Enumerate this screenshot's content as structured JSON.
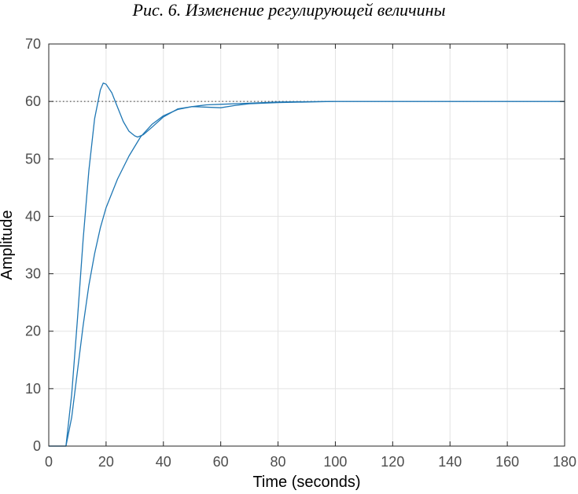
{
  "caption": "Рис. 6. Изменение регулирующей величины",
  "chart_data": {
    "type": "line",
    "title": "",
    "xlabel": "Time (seconds)",
    "ylabel": "Amplitude",
    "xlim": [
      0,
      180
    ],
    "ylim": [
      0,
      70
    ],
    "xticks": [
      0,
      20,
      40,
      60,
      80,
      100,
      120,
      140,
      160,
      180
    ],
    "yticks": [
      0,
      10,
      20,
      30,
      40,
      50,
      60,
      70
    ],
    "grid": true,
    "legend": "none",
    "reference_line": {
      "y": 60,
      "style": "dotted"
    },
    "series": [
      {
        "color": "#1f77b4",
        "points": [
          [
            0,
            0
          ],
          [
            6,
            0
          ],
          [
            8,
            9
          ],
          [
            10,
            22
          ],
          [
            12,
            36
          ],
          [
            14,
            48
          ],
          [
            16,
            57
          ],
          [
            18,
            62
          ],
          [
            19,
            63.2
          ],
          [
            20,
            63
          ],
          [
            22,
            61.5
          ],
          [
            24,
            59
          ],
          [
            26,
            56.5
          ],
          [
            28,
            54.8
          ],
          [
            30,
            54
          ],
          [
            31,
            53.8
          ],
          [
            33,
            54.2
          ],
          [
            36,
            55.5
          ],
          [
            40,
            57.3
          ],
          [
            45,
            58.7
          ],
          [
            50,
            59.1
          ],
          [
            55,
            59.0
          ],
          [
            60,
            58.9
          ],
          [
            65,
            59.3
          ],
          [
            70,
            59.6
          ],
          [
            80,
            59.8
          ],
          [
            100,
            60
          ],
          [
            120,
            60
          ],
          [
            180,
            60
          ]
        ]
      },
      {
        "color": "#1f77b4",
        "points": [
          [
            0,
            0
          ],
          [
            6,
            0
          ],
          [
            8,
            5
          ],
          [
            10,
            13
          ],
          [
            12,
            21
          ],
          [
            14,
            28
          ],
          [
            16,
            33.5
          ],
          [
            18,
            38
          ],
          [
            20,
            41.5
          ],
          [
            24,
            46.5
          ],
          [
            28,
            50.5
          ],
          [
            32,
            53.8
          ],
          [
            36,
            56
          ],
          [
            40,
            57.5
          ],
          [
            45,
            58.6
          ],
          [
            50,
            59.1
          ],
          [
            55,
            59.4
          ],
          [
            60,
            59.5
          ],
          [
            70,
            59.7
          ],
          [
            80,
            59.9
          ],
          [
            100,
            60
          ],
          [
            120,
            60
          ],
          [
            180,
            60
          ]
        ]
      }
    ]
  }
}
